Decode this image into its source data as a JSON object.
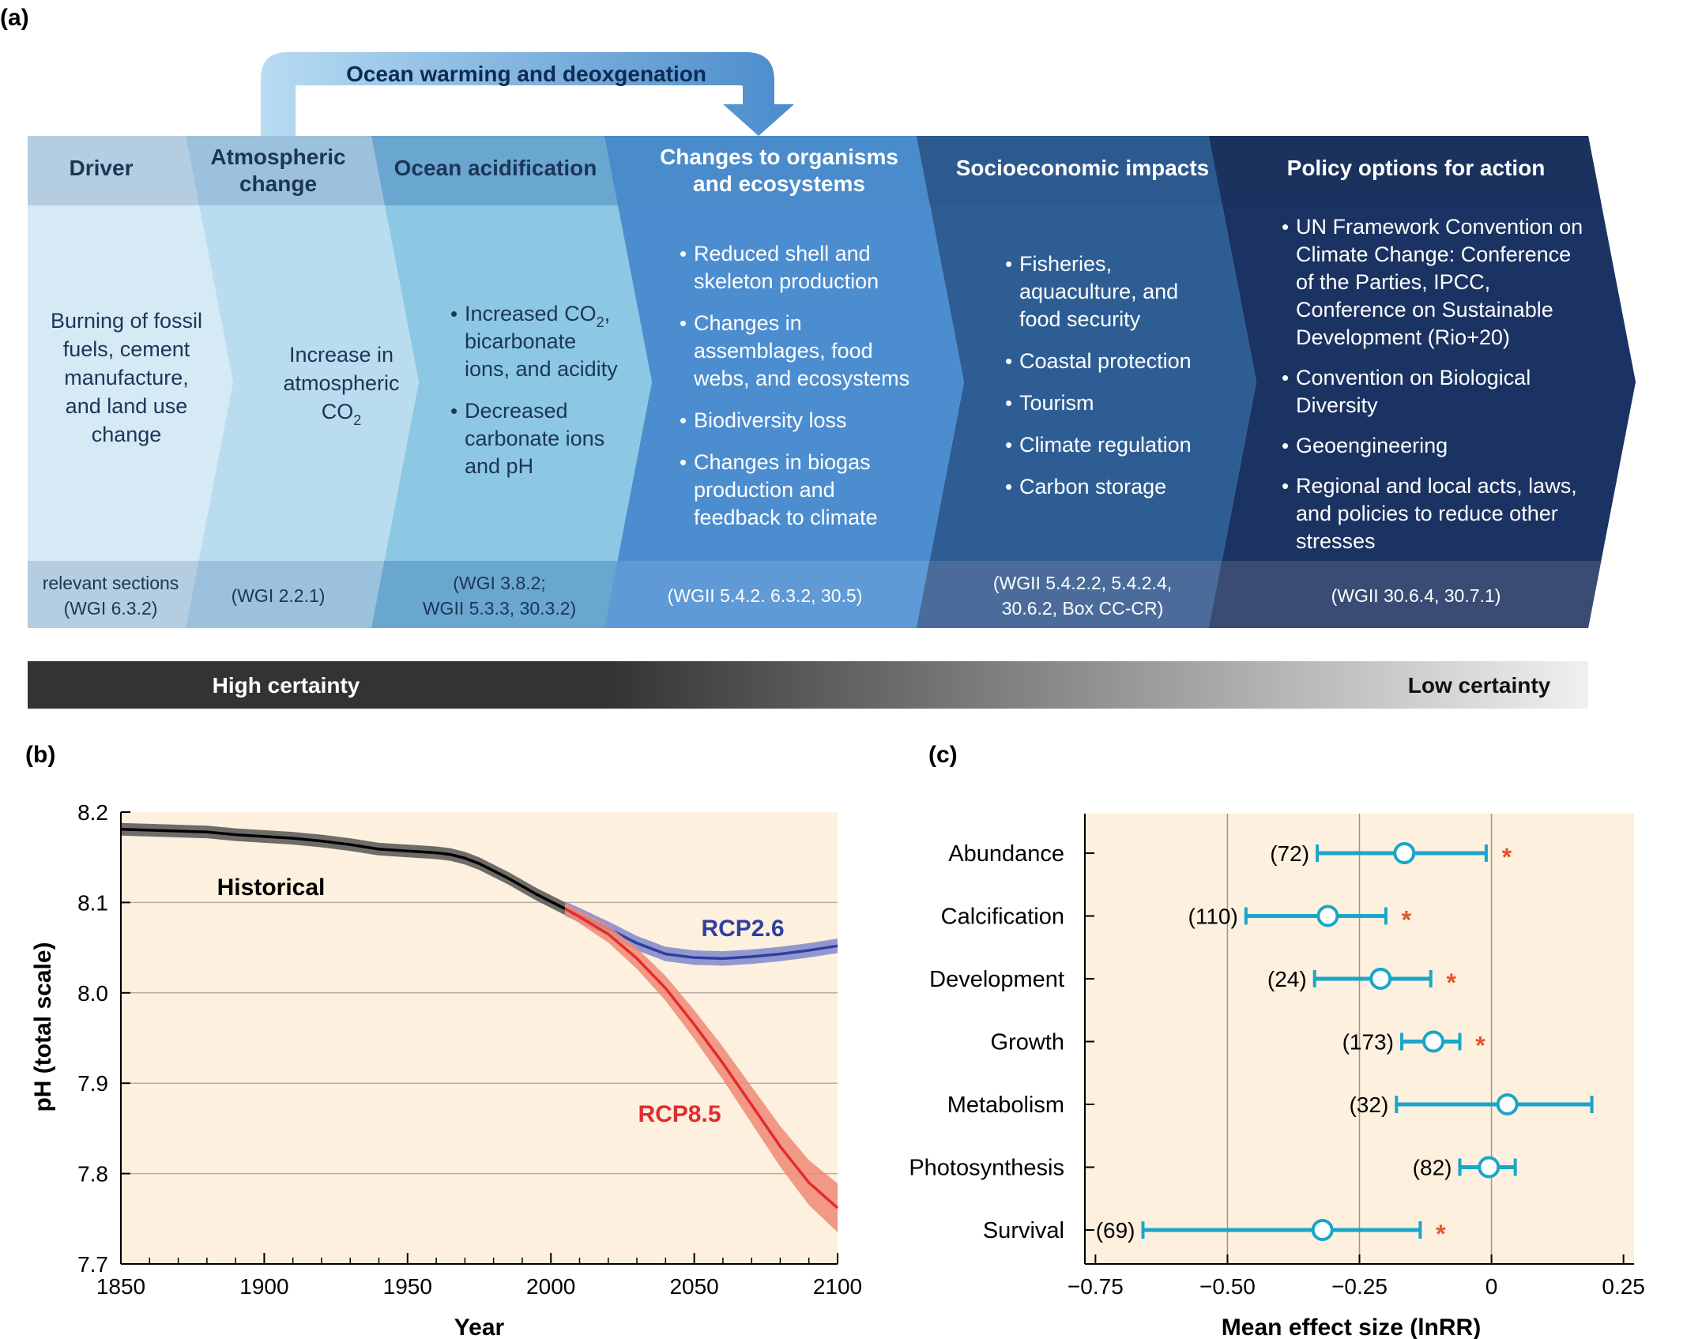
{
  "panel_a": {
    "label": "(a)",
    "arrow_label": "Ocean warming and deoxgenation",
    "columns": [
      {
        "header": [
          "Driver"
        ],
        "body": [
          "Burning of fossil",
          "fuels, cement",
          "manufacture,",
          "and land use",
          "change"
        ],
        "bullets": [],
        "refs": [
          "relevant sections",
          "(WGI 6.3.2)"
        ],
        "colors": {
          "head": "#b5cde0",
          "body": "#d6eaf6",
          "foot": "#b5cde0",
          "text": "#1d3557"
        }
      },
      {
        "header": [
          "Atmospheric",
          "change"
        ],
        "body": [
          "Increase in",
          "atmospheric",
          "CO₂"
        ],
        "bullets": [],
        "refs": [
          "(WGI 2.2.1)"
        ],
        "colors": {
          "head": "#9bc1dc",
          "body": "#b9dcef",
          "foot": "#9bc1dc",
          "text": "#1d3557"
        }
      },
      {
        "header": [
          "Ocean acidification"
        ],
        "body": [],
        "bullets": [
          [
            "Increased CO₂,",
            "bicarbonate",
            "ions, and acidity"
          ],
          [
            "Decreased",
            "carbonate ions",
            "and pH"
          ]
        ],
        "refs": [
          "(WGI 3.8.2;",
          "WGII 5.3.3, 30.3.2)"
        ],
        "colors": {
          "head": "#6aa7cf",
          "body": "#8cc8e4",
          "foot": "#6aa7cf",
          "text": "#1d3557"
        }
      },
      {
        "header": [
          "Changes to organisms",
          "and ecosystems"
        ],
        "body": [],
        "bullets": [
          [
            "Reduced shell and",
            "skeleton production"
          ],
          [
            "Changes in",
            "assemblages, food",
            "webs, and ecosystems"
          ],
          [
            "Biodiversity loss"
          ],
          [
            "Changes in biogas",
            "production and",
            "feedback to climate"
          ]
        ],
        "refs": [
          "(WGII 5.4.2. 6.3.2, 30.5)"
        ],
        "colors": {
          "head": "#4a8bcb",
          "body": "#4c8dd0",
          "foot": "#5f9ad6",
          "text": "#ffffff"
        }
      },
      {
        "header": [
          "Socioeconomic impacts"
        ],
        "body": [],
        "bullets": [
          [
            "Fisheries,",
            "aquaculture, and",
            "food security"
          ],
          [
            "Coastal protection"
          ],
          [
            "Tourism"
          ],
          [
            "Climate regulation"
          ],
          [
            "Carbon storage"
          ]
        ],
        "refs": [
          "(WGII 5.4.2.2, 5.4.2.4,",
          "30.6.2, Box CC-CR)"
        ],
        "colors": {
          "head": "#2d5a8e",
          "body": "#2e5d94",
          "foot": "#4b6c9a",
          "text": "#ffffff"
        }
      },
      {
        "header": [
          "Policy options for action"
        ],
        "body": [],
        "bullets": [
          [
            "UN Framework Convention on",
            "Climate Change: Conference",
            "of the Parties, IPCC,",
            "Conference on Sustainable",
            "Development (Rio+20)"
          ],
          [
            "Convention on Biological",
            "Diversity"
          ],
          [
            "Geoengineering"
          ],
          [
            "Regional and local acts, laws,",
            "and policies to reduce other",
            "stresses"
          ]
        ],
        "refs": [
          "(WGII 30.6.4, 30.7.1)"
        ],
        "colors": {
          "head": "#1c325e",
          "body": "#1b3362",
          "foot": "#3a4c74",
          "text": "#ffffff"
        }
      }
    ],
    "certainty": {
      "high": "High certainty",
      "low": "Low certainty"
    }
  },
  "panel_b": {
    "label": "(b)",
    "chart_data": {
      "type": "line",
      "xlabel": "Year",
      "ylabel": "pH (total scale)",
      "xlim": [
        1850,
        2100
      ],
      "ylim": [
        7.7,
        8.2
      ],
      "xticks": [
        "1850",
        "1900",
        "1950",
        "2000",
        "2050",
        "2100"
      ],
      "yticks": [
        "7.7",
        "7.8",
        "7.9",
        "8.0",
        "8.1",
        "8.2"
      ],
      "series": [
        {
          "name": "Historical",
          "color": "#000000",
          "band": "#555555",
          "x": [
            1850,
            1860,
            1870,
            1880,
            1890,
            1900,
            1910,
            1920,
            1930,
            1940,
            1950,
            1960,
            1965,
            1970,
            1975,
            1980,
            1985,
            1990,
            1995,
            2000,
            2005
          ],
          "y": [
            8.181,
            8.18,
            8.179,
            8.178,
            8.175,
            8.173,
            8.171,
            8.168,
            8.164,
            8.159,
            8.157,
            8.155,
            8.153,
            8.149,
            8.143,
            8.135,
            8.127,
            8.118,
            8.109,
            8.101,
            8.093
          ],
          "err": 0.007
        },
        {
          "name": "RCP2.6",
          "color": "#2f3f9e",
          "band": "#7f88cc",
          "x": [
            2005,
            2010,
            2020,
            2030,
            2040,
            2050,
            2060,
            2070,
            2080,
            2090,
            2100
          ],
          "y": [
            8.093,
            8.086,
            8.071,
            8.055,
            8.043,
            8.039,
            8.038,
            8.04,
            8.043,
            8.047,
            8.052
          ],
          "err": 0.008
        },
        {
          "name": "RCP8.5",
          "color": "#e32b2b",
          "band": "#f08a75",
          "x": [
            2005,
            2010,
            2020,
            2030,
            2040,
            2050,
            2060,
            2070,
            2080,
            2090,
            2100
          ],
          "y": [
            8.093,
            8.084,
            8.065,
            8.038,
            8.005,
            7.965,
            7.922,
            7.876,
            7.83,
            7.79,
            7.762
          ],
          "err_start": 0.006,
          "err_end": 0.027
        }
      ],
      "annotations": [
        "Historical",
        "RCP2.6",
        "RCP8.5"
      ],
      "grid": true
    }
  },
  "panel_c": {
    "label": "(c)",
    "chart_data": {
      "type": "scatter",
      "xlabel": "Mean effect size (lnRR)",
      "xlim": [
        -0.77,
        0.27
      ],
      "xticks": [
        -0.75,
        -0.5,
        -0.25,
        0,
        0.25
      ],
      "xtick_labels": [
        "−0.75",
        "−0.50",
        "−0.25",
        "0",
        "0.25"
      ],
      "categories": [
        "Abundance",
        "Calcification",
        "Development",
        "Growth",
        "Metabolism",
        "Photosynthesis",
        "Survival"
      ],
      "means": [
        -0.165,
        -0.31,
        -0.21,
        -0.11,
        0.03,
        -0.005,
        -0.32
      ],
      "lower": [
        -0.33,
        -0.465,
        -0.335,
        -0.17,
        -0.18,
        -0.06,
        -0.66
      ],
      "upper": [
        -0.01,
        -0.2,
        -0.115,
        -0.06,
        0.19,
        0.045,
        -0.135
      ],
      "counts": [
        "(72)",
        "(110)",
        "(24)",
        "(173)",
        "(32)",
        "(82)",
        "(69)"
      ],
      "significant": [
        true,
        true,
        true,
        true,
        false,
        false,
        true
      ],
      "significance_mark": "*",
      "colors": {
        "point": "#1aa6c8",
        "star": "#e0572a",
        "bg": "#fdf0de"
      },
      "vlines": [
        -0.5,
        -0.25,
        0
      ]
    }
  }
}
